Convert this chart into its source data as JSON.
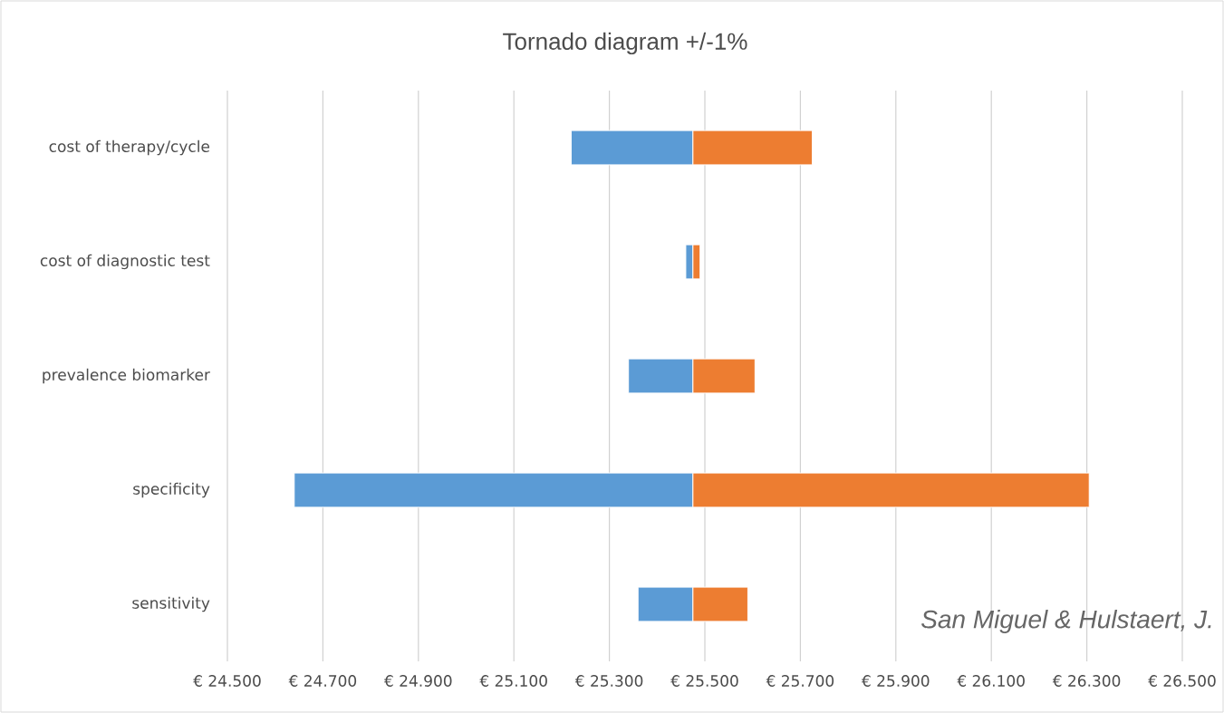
{
  "chart_data": {
    "type": "bar",
    "orientation": "horizontal",
    "title": "Tornado diagram +/-1%",
    "categories": [
      "cost of therapy/cycle",
      "cost of diagnostic test",
      "prevalence biomarker",
      "specificity",
      "sensitivity"
    ],
    "series": [
      {
        "color": "#5b9bd5",
        "base": [
          25220,
          25460,
          25340,
          24640,
          25360
        ],
        "values": [
          255,
          15,
          135,
          835,
          115
        ]
      },
      {
        "color": "#ed7d31",
        "base": [
          25475,
          25475,
          25475,
          25475,
          25475
        ],
        "values": [
          250,
          15,
          130,
          830,
          115
        ]
      }
    ],
    "xlim": [
      24500,
      26500
    ],
    "xticks": [
      {
        "value": 24500,
        "label": "€ 24.500"
      },
      {
        "value": 24700,
        "label": "€ 24.700"
      },
      {
        "value": 24900,
        "label": "€ 24.900"
      },
      {
        "value": 25100,
        "label": "€ 25.100"
      },
      {
        "value": 25300,
        "label": "€ 25.300"
      },
      {
        "value": 25500,
        "label": "€ 25.500"
      },
      {
        "value": 25700,
        "label": "€ 25.700"
      },
      {
        "value": 25900,
        "label": "€ 25.900"
      },
      {
        "value": 26100,
        "label": "€ 26.100"
      },
      {
        "value": 26300,
        "label": "€ 26.300"
      },
      {
        "value": 26500,
        "label": "€ 26.500"
      }
    ],
    "grid": "x",
    "annotations": [
      "San Miguel & Hulstaert, J."
    ]
  }
}
